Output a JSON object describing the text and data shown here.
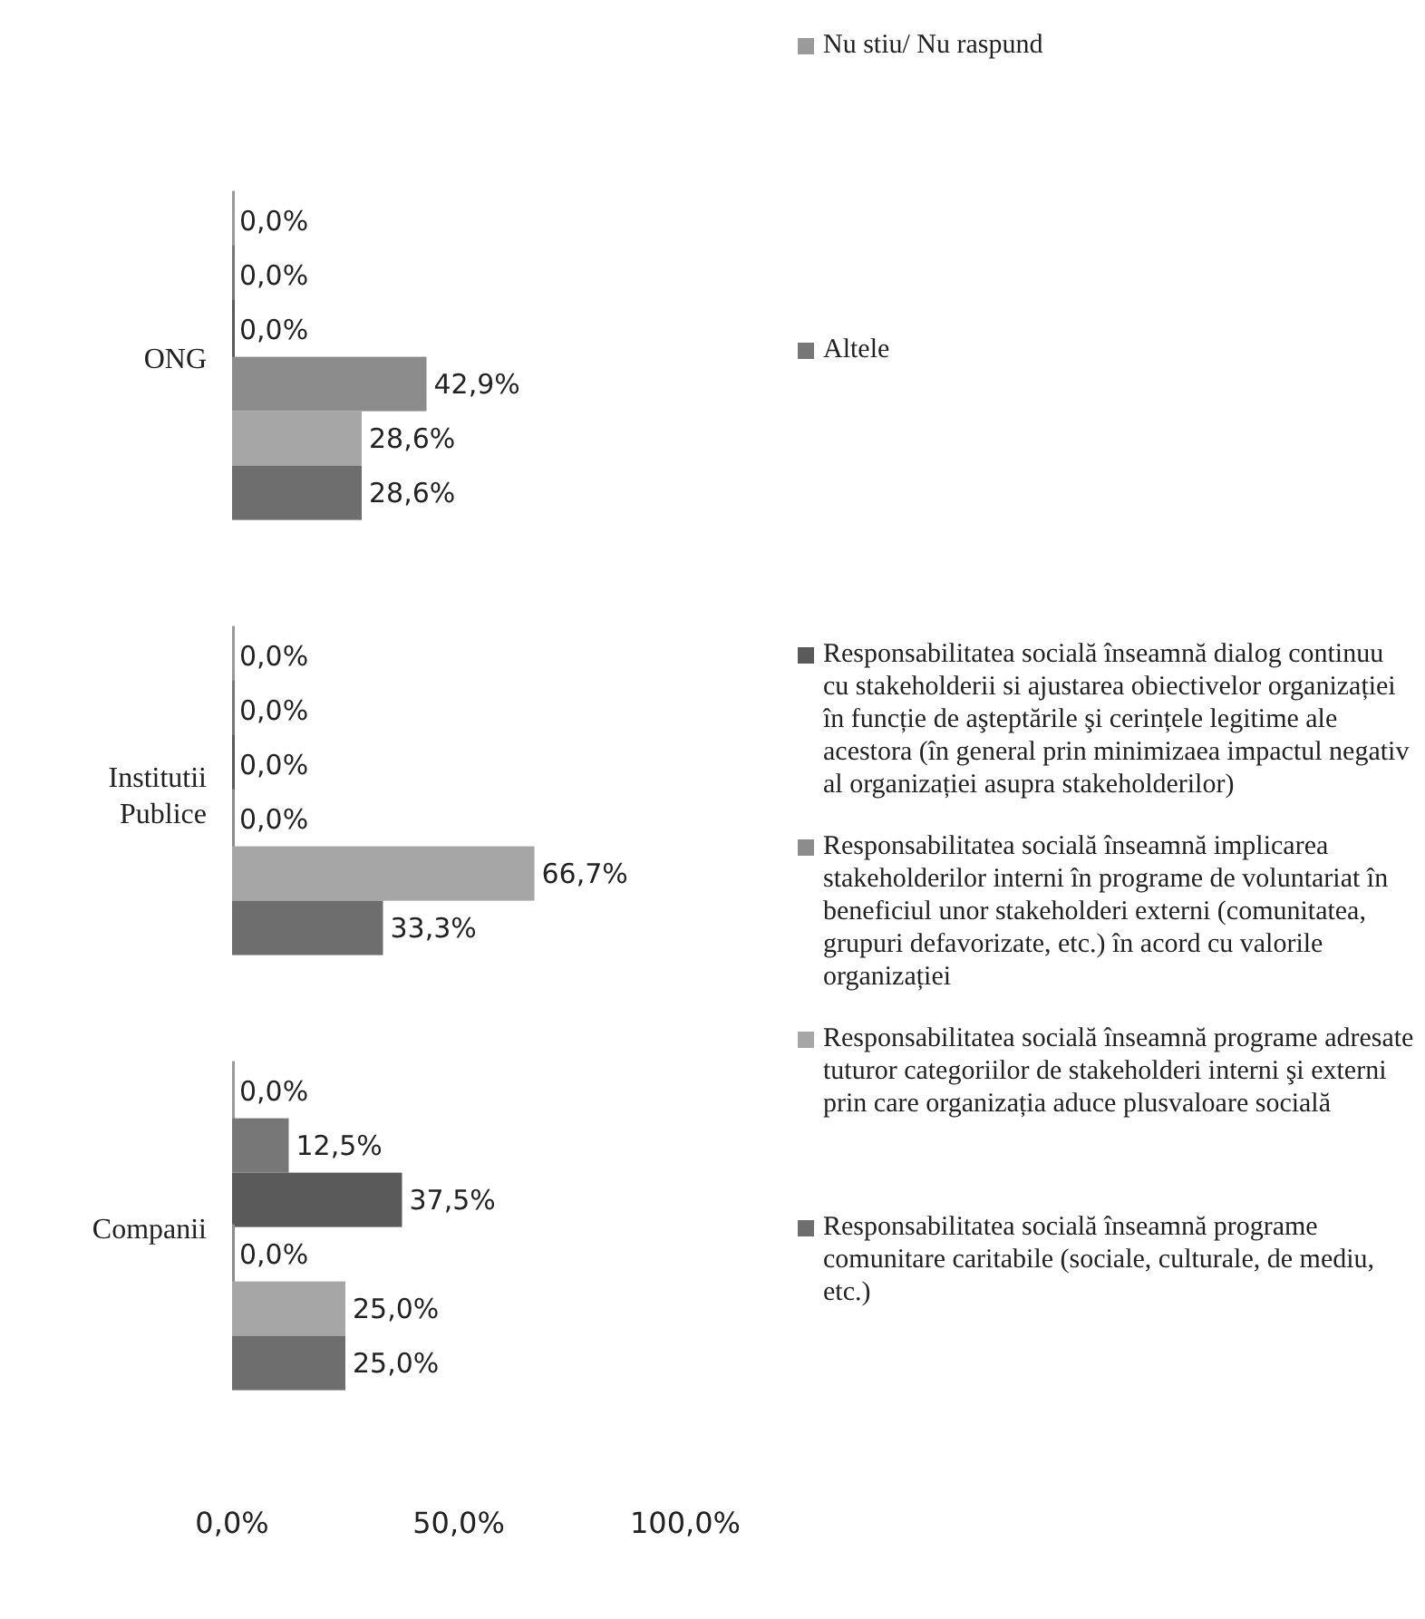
{
  "chart_data": {
    "type": "bar",
    "orientation": "horizontal",
    "categories": [
      "ONG",
      "Institutii Publice",
      "Companii"
    ],
    "series": [
      {
        "name": "Nu stiu/ Nu raspund",
        "color": "#9a9a9a",
        "values": [
          0,
          0,
          0
        ],
        "value_labels": [
          "0,0%",
          "0,0%",
          "0,0%"
        ]
      },
      {
        "name": "Altele",
        "color": "#777777",
        "values": [
          0,
          0,
          12.5
        ],
        "value_labels": [
          "0,0%",
          "0,0%",
          "12,5%"
        ]
      },
      {
        "name": "Responsabilitatea socială înseamnă dialog continuu cu stakeholderii si ajustarea obiectivelor organizației în funcție de aşteptările şi cerințele legitime ale acestora (în general prin minimizaea impactul negativ al organizației asupra stakeholderilor)",
        "color": "#5a5a5a",
        "values": [
          0,
          0,
          37.5
        ],
        "value_labels": [
          "0,0%",
          "0,0%",
          "37,5%"
        ]
      },
      {
        "name": "Responsabilitatea socială înseamnă implicarea stakeholderilor interni în programe de voluntariat în beneficiul unor stakeholderi externi (comunitatea, grupuri defavorizate, etc.) în acord cu valorile organizației",
        "color": "#8c8c8c",
        "values": [
          42.9,
          0,
          0
        ],
        "value_labels": [
          "42,9%",
          "0,0%",
          "0,0%"
        ]
      },
      {
        "name": "Responsabilitatea socială înseamnă programe adresate tuturor categoriilor de stakeholderi interni şi externi prin care organizația aduce plusvaloare socială",
        "color": "#a6a6a6",
        "values": [
          28.6,
          66.7,
          25
        ],
        "value_labels": [
          "28,6%",
          "66,7%",
          "25,0%"
        ]
      },
      {
        "name": "Responsabilitatea socială înseamnă programe comunitare caritabile (sociale, culturale, de mediu, etc.)",
        "color": "#6e6e6e",
        "values": [
          28.6,
          33.3,
          25
        ],
        "value_labels": [
          "28,6%",
          "33,3%",
          "25,0%"
        ]
      }
    ],
    "xlim": [
      0,
      100
    ],
    "xticks": [
      {
        "value": 0,
        "label": "0,0%"
      },
      {
        "value": 50,
        "label": "50,0%"
      },
      {
        "value": 100,
        "label": "100,0%"
      }
    ],
    "grid": false,
    "legend": "right"
  }
}
